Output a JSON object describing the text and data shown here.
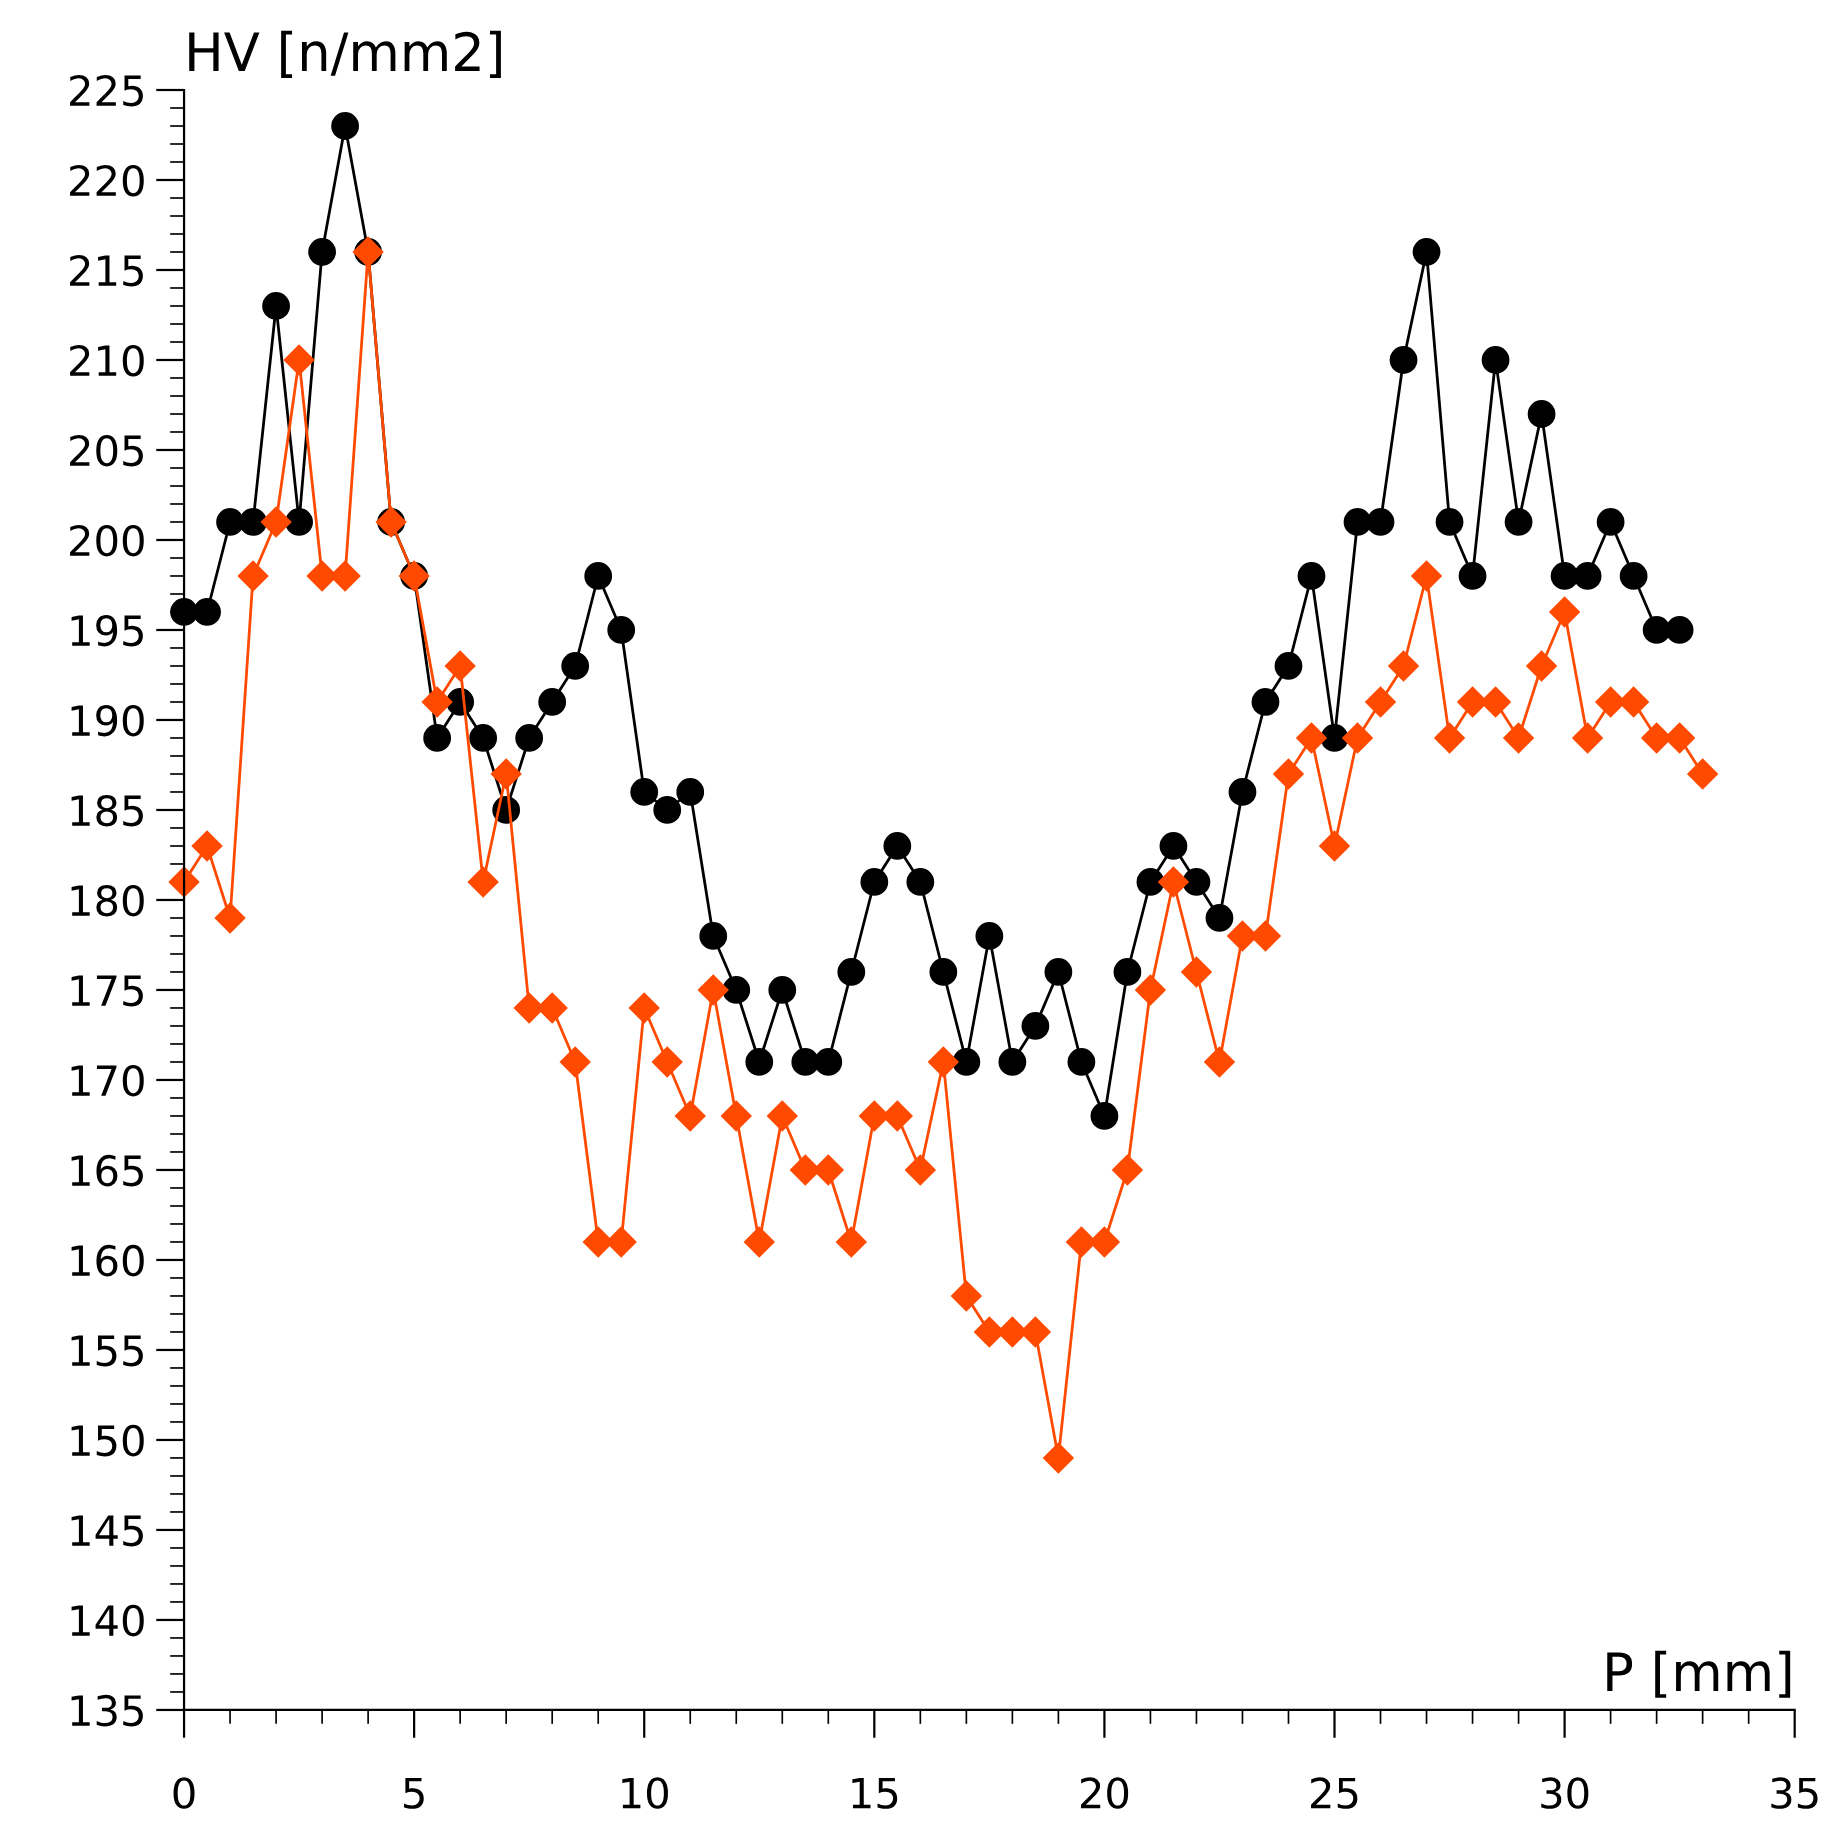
{
  "chart_data": {
    "type": "line",
    "xlabel": "P [mm]",
    "ylabel": "HV [n/mm2]",
    "xlim": [
      0,
      35
    ],
    "ylim": [
      135,
      225
    ],
    "xticks": [
      0,
      5,
      10,
      15,
      20,
      25,
      30,
      35
    ],
    "yticks": [
      135,
      140,
      145,
      150,
      155,
      160,
      165,
      170,
      175,
      180,
      185,
      190,
      195,
      200,
      205,
      210,
      215,
      220,
      225
    ],
    "grid": false,
    "legend": false,
    "series": [
      {
        "color": "#000000",
        "marker": "circle",
        "x": [
          0,
          0.5,
          1,
          1.5,
          2,
          2.5,
          3,
          3.5,
          4,
          4.5,
          5,
          5.5,
          6,
          6.5,
          7,
          7.5,
          8,
          8.5,
          9,
          9.5,
          10,
          10.5,
          11,
          11.5,
          12,
          12.5,
          13,
          13.5,
          14,
          14.5,
          15,
          15.5,
          16,
          16.5,
          17,
          17.5,
          18,
          18.5,
          19,
          19.5,
          20,
          20.5,
          21,
          21.5,
          22,
          22.5,
          23,
          23.5,
          24,
          24.5,
          25,
          25.5,
          26,
          26.5,
          27,
          27.5,
          28,
          28.5,
          29,
          29.5,
          30,
          30.5,
          31,
          31.5,
          32,
          32.5
        ],
        "values": [
          196,
          196,
          201,
          201,
          213,
          201,
          216,
          223,
          216,
          201,
          198,
          189,
          191,
          189,
          185,
          189,
          191,
          193,
          198,
          195,
          186,
          185,
          186,
          178,
          175,
          171,
          175,
          171,
          171,
          176,
          181,
          183,
          181,
          176,
          171,
          178,
          171,
          173,
          176,
          171,
          168,
          176,
          181,
          183,
          181,
          179,
          186,
          191,
          193,
          198,
          189,
          201,
          201,
          210,
          216,
          201,
          198,
          210,
          201,
          207,
          198,
          198,
          201,
          198,
          195,
          195
        ]
      },
      {
        "color": "#ff4a00",
        "marker": "diamond",
        "x": [
          0,
          0.5,
          1,
          1.5,
          2,
          2.5,
          3,
          3.5,
          4,
          4.5,
          5,
          5.5,
          6,
          6.5,
          7,
          7.5,
          8,
          8.5,
          9,
          9.5,
          10,
          10.5,
          11,
          11.5,
          12,
          12.5,
          13,
          13.5,
          14,
          14.5,
          15,
          15.5,
          16,
          16.5,
          17,
          17.5,
          18,
          18.5,
          19,
          19.5,
          20,
          20.5,
          21,
          21.5,
          22,
          22.5,
          23,
          23.5,
          24,
          24.5,
          25,
          25.5,
          26,
          26.5,
          27,
          27.5,
          28,
          28.5,
          29,
          29.5,
          30,
          30.5,
          31,
          31.5,
          32,
          32.5,
          33
        ],
        "values": [
          181,
          183,
          179,
          198,
          201,
          210,
          198,
          198,
          216,
          201,
          198,
          191,
          193,
          181,
          187,
          174,
          174,
          171,
          161,
          161,
          174,
          171,
          168,
          175,
          168,
          161,
          168,
          165,
          165,
          161,
          168,
          168,
          165,
          171,
          158,
          156,
          156,
          156,
          149,
          161,
          161,
          165,
          175,
          181,
          176,
          171,
          178,
          178,
          187,
          189,
          183,
          189,
          191,
          193,
          198,
          189,
          191,
          191,
          189,
          193,
          196,
          189,
          191,
          191,
          189,
          189,
          187
        ]
      }
    ]
  }
}
